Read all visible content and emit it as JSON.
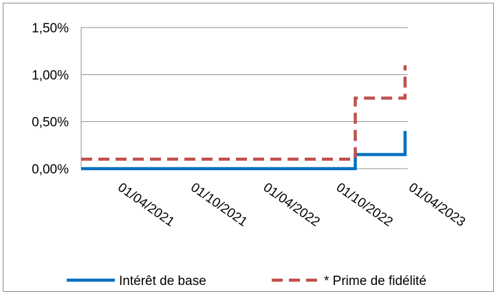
{
  "chart_data": {
    "type": "line",
    "y_ticks": [
      "0,00%",
      "0,50%",
      "1,00%",
      "1,50%"
    ],
    "y_tick_values": [
      0,
      0.5,
      1.0,
      1.5
    ],
    "ylim": [
      0,
      1.5
    ],
    "x_ticks": [
      "01/04/2021",
      "01/10/2021",
      "01/04/2022",
      "01/10/2022",
      "01/04/2023"
    ],
    "x_tick_dates": [
      "2021-04-01",
      "2021-10-01",
      "2022-04-01",
      "2022-10-01",
      "2023-04-01"
    ],
    "x_range": [
      "2021-01-01",
      "2023-04-01"
    ],
    "grid": true,
    "legend": "bottom",
    "series": [
      {
        "name": "Intérêt de base",
        "color": "#0070c0",
        "style": "solid",
        "points": [
          {
            "x": "2021-01-01",
            "y": 0.0
          },
          {
            "x": "2022-11-20",
            "y": 0.0
          },
          {
            "x": "2022-11-20",
            "y": 0.15
          },
          {
            "x": "2023-03-25",
            "y": 0.15
          },
          {
            "x": "2023-03-25",
            "y": 0.4
          }
        ]
      },
      {
        "name": "* Prime de fidélité",
        "color": "#c0504d",
        "style": "dashed",
        "points": [
          {
            "x": "2021-01-01",
            "y": 0.1
          },
          {
            "x": "2022-11-20",
            "y": 0.1
          },
          {
            "x": "2022-11-20",
            "y": 0.75
          },
          {
            "x": "2023-03-25",
            "y": 0.75
          },
          {
            "x": "2023-03-25",
            "y": 1.1
          }
        ]
      }
    ]
  }
}
